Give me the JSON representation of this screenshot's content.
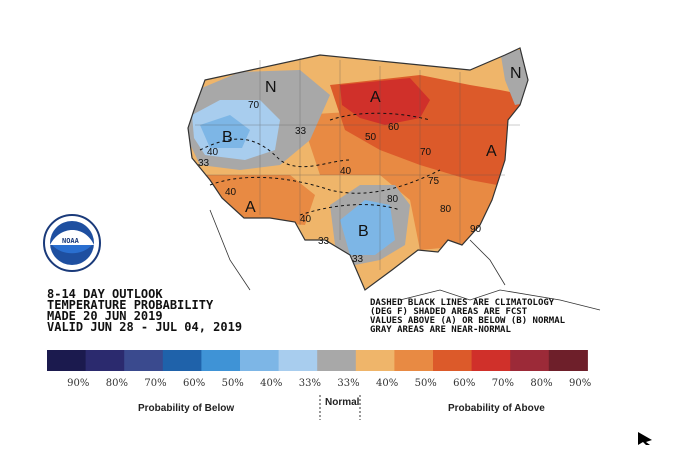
{
  "outlook": {
    "line1": "8-14 DAY OUTLOOK",
    "line2": "TEMPERATURE PROBABILITY",
    "line3": "MADE  20 JUN 2019",
    "line4": "VALID  JUN 28 - JUL 04, 2019"
  },
  "notes": {
    "line1": "DASHED BLACK LINES ARE CLIMATOLOGY",
    "line2": "(DEG F) SHADED AREAS ARE FCST",
    "line3": "VALUES ABOVE (A) OR BELOW (B) NORMAL",
    "line4": "GRAY AREAS ARE NEAR-NORMAL"
  },
  "logo": {
    "text": "NOAA"
  },
  "map_labels": {
    "letters": [
      "N",
      "B",
      "A",
      "A",
      "A",
      "B",
      "N"
    ],
    "contours": [
      "70",
      "33",
      "40",
      "33",
      "40",
      "50",
      "60",
      "40",
      "80",
      "40",
      "33",
      "33",
      "70",
      "75",
      "80",
      "90"
    ]
  },
  "legend": {
    "below_label": "Probability of Below",
    "normal_label": "Normal",
    "above_label": "Probability of Above",
    "ticks": [
      "90%",
      "80%",
      "70%",
      "60%",
      "50%",
      "40%",
      "33%",
      "33%",
      "40%",
      "50%",
      "60%",
      "70%",
      "80%",
      "90%"
    ],
    "colors": [
      "#1b1a4e",
      "#2b2a6e",
      "#3a4a8e",
      "#1f62aa",
      "#3f93d6",
      "#7db6e6",
      "#a8cdee",
      "#a8a8a8",
      "#efb56a",
      "#e88a43",
      "#dc5a2a",
      "#d0302a",
      "#9c2a38",
      "#6e1f2a"
    ]
  }
}
